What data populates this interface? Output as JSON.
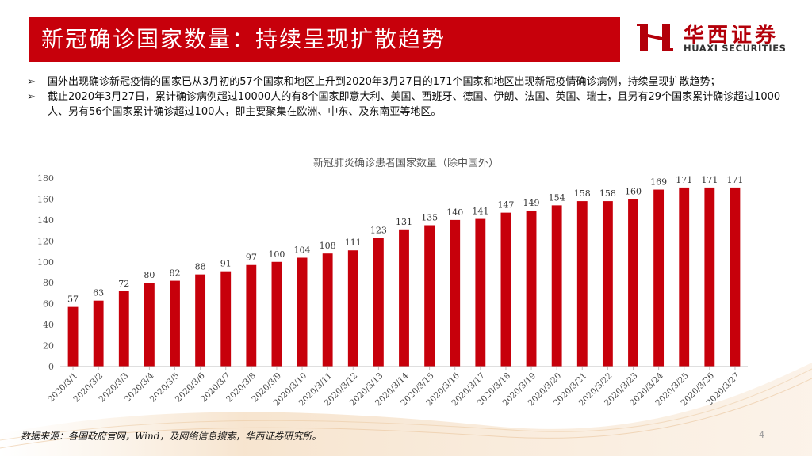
{
  "header": {
    "title": "新冠确诊国家数量：持续呈现扩散趋势",
    "brand_cn": "华西证券",
    "brand_en": "HUAXI SECURITIES"
  },
  "bullets": [
    "国外出现确诊新冠疫情的国家已从3月初的57个国家和地区上升到2020年3月27日的171个国家和地区出现新冠疫情确诊病例，持续呈现扩散趋势；",
    "截止2020年3月27日，累计确诊病例超过10000人的有8个国家即意大利、美国、西班牙、德国、伊朗、法国、英国、瑞士，且另有29个国家累计确诊超过1000人、另有56个国家累计确诊超过100人，即主要聚集在欧洲、中东、及东南亚等地区。"
  ],
  "bullet_marker": "➢",
  "chart_data": {
    "type": "bar",
    "title": "新冠肺炎确诊患者国家数量（除中国外）",
    "xlabel": "",
    "ylabel": "",
    "categories": [
      "2020/3/1",
      "2020/3/2",
      "2020/3/3",
      "2020/3/4",
      "2020/3/5",
      "2020/3/6",
      "2020/3/7",
      "2020/3/8",
      "2020/3/9",
      "2020/3/10",
      "2020/3/11",
      "2020/3/12",
      "2020/3/13",
      "2020/3/14",
      "2020/3/15",
      "2020/3/16",
      "2020/3/17",
      "2020/3/18",
      "2020/3/19",
      "2020/3/20",
      "2020/3/21",
      "2020/3/22",
      "2020/3/23",
      "2020/3/24",
      "2020/3/25",
      "2020/3/26",
      "2020/3/27"
    ],
    "values": [
      57,
      63,
      72,
      80,
      82,
      88,
      91,
      97,
      100,
      104,
      108,
      111,
      123,
      131,
      135,
      140,
      141,
      147,
      149,
      154,
      158,
      158,
      160,
      169,
      171,
      171,
      171
    ],
    "ylim": [
      0,
      180
    ],
    "yticks": [
      0,
      20,
      40,
      60,
      80,
      100,
      120,
      140,
      160,
      180
    ],
    "grid": false,
    "bar_color": "#c7000b",
    "data_labels": true
  },
  "footer": {
    "source": "数据来源：各国政府官网，Wind，及网络信息搜索，华西证券研究所。",
    "page": "4"
  },
  "colors": {
    "brand_red": "#c7000b",
    "text": "#111111"
  }
}
